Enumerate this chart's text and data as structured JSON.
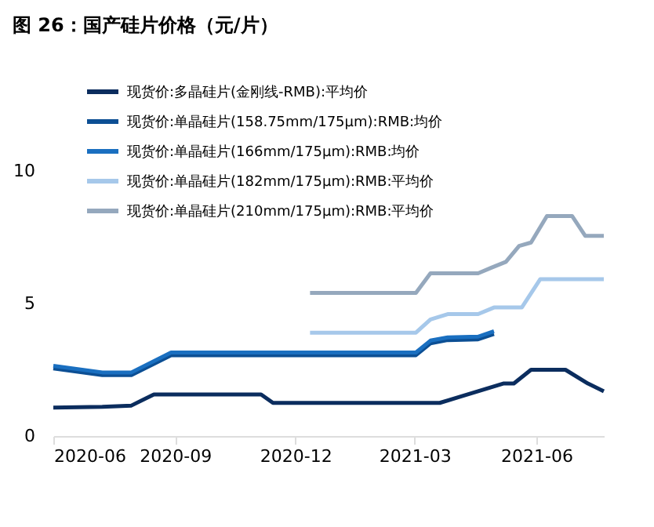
{
  "chart_data": {
    "type": "line",
    "title": "图 26：国产硅片价格（元/片）",
    "xlim": [
      "2020-06-01",
      "2021-07-22"
    ],
    "xticks": [
      {
        "value": "2020-06-01",
        "label": "2020-06"
      },
      {
        "value": "2020-09-01",
        "label": "2020-09"
      },
      {
        "value": "2020-12-01",
        "label": "2020-12"
      },
      {
        "value": "2021-03-01",
        "label": "2021-03"
      },
      {
        "value": "2021-06-01",
        "label": "2021-06"
      }
    ],
    "ylim": [
      0,
      10
    ],
    "yticks": [
      0,
      5,
      10
    ],
    "grid": false,
    "legend": "top left",
    "line_style": "solid",
    "marker": "none",
    "series": [
      {
        "name": "现货价:多晶硅片(金刚线-RMB):平均价",
        "color": "#0b2d5e",
        "x": [
          "2020-06-01",
          "2020-07-08",
          "2020-07-30",
          "2020-08-16",
          "2020-11-05",
          "2020-11-14",
          "2021-03-20",
          "2021-05-07",
          "2021-05-15",
          "2021-05-28",
          "2021-06-23",
          "2021-07-10",
          "2021-07-22"
        ],
        "values": [
          1.07,
          1.1,
          1.15,
          1.57,
          1.57,
          1.25,
          1.25,
          1.98,
          1.98,
          2.5,
          2.5,
          1.98,
          1.69
        ]
      },
      {
        "name": "现货价:单晶硅片(158.75mm/175μm):RMB:均价",
        "color": "#0c4f94",
        "x": [
          "2020-06-01",
          "2020-07-08",
          "2020-07-30",
          "2020-08-29",
          "2021-03-02",
          "2021-03-13",
          "2021-03-26",
          "2021-04-18",
          "2021-04-30"
        ],
        "values": [
          2.55,
          2.3,
          2.3,
          3.05,
          3.05,
          3.5,
          3.62,
          3.65,
          3.85
        ]
      },
      {
        "name": "现货价:单晶硅片(166mm/175μm):RMB:均价",
        "color": "#1a6fc0",
        "x": [
          "2020-06-01",
          "2020-07-08",
          "2020-07-30",
          "2020-08-29",
          "2021-03-02",
          "2021-03-13",
          "2021-03-26",
          "2021-04-18",
          "2021-04-30"
        ],
        "values": [
          2.65,
          2.4,
          2.4,
          3.15,
          3.15,
          3.6,
          3.72,
          3.75,
          3.95
        ]
      },
      {
        "name": "现货价:单晶硅片(182mm/175μm):RMB:平均价",
        "color": "#a6c8ea",
        "x": [
          "2020-12-12",
          "2021-03-02",
          "2021-03-13",
          "2021-03-26",
          "2021-04-18",
          "2021-04-30",
          "2021-05-21",
          "2021-06-04",
          "2021-07-22"
        ],
        "values": [
          3.9,
          3.9,
          4.4,
          4.6,
          4.6,
          4.85,
          4.85,
          5.92,
          5.92
        ]
      },
      {
        "name": "现货价:单晶硅片(210mm/175μm):RMB:平均价",
        "color": "#95a8bd",
        "x": [
          "2020-12-12",
          "2021-03-02",
          "2021-03-13",
          "2021-04-18",
          "2021-04-28",
          "2021-05-09",
          "2021-05-19",
          "2021-05-28",
          "2021-06-09",
          "2021-06-28",
          "2021-07-08",
          "2021-07-22"
        ],
        "values": [
          5.4,
          5.4,
          6.14,
          6.14,
          6.35,
          6.57,
          7.17,
          7.3,
          8.3,
          8.3,
          7.55,
          7.55
        ]
      }
    ]
  }
}
